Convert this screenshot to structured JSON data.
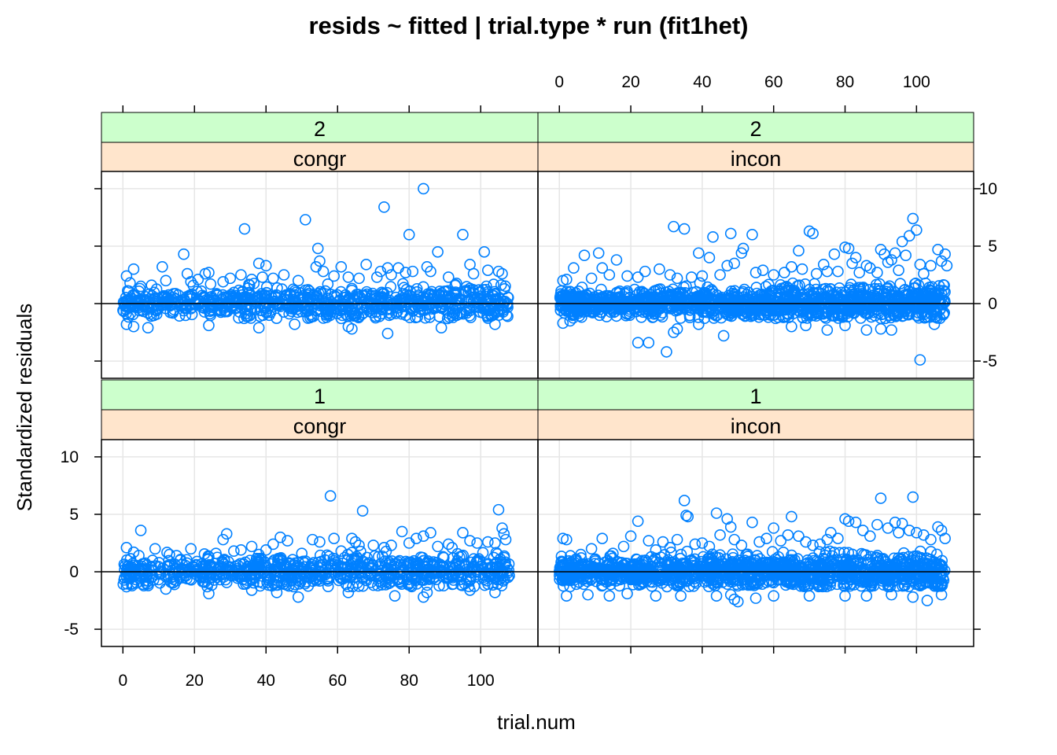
{
  "chart_data": {
    "type": "scatter",
    "title": "resids ~ fitted | trial.type * run (fit1het)",
    "xlabel": "trial.num",
    "ylabel": "Standardized residuals",
    "xlim": [
      -6,
      116
    ],
    "ylim": [
      -6.5,
      11.5
    ],
    "x_ticks": [
      0,
      20,
      40,
      60,
      80,
      100
    ],
    "y_ticks": [
      -5,
      0,
      5,
      10
    ],
    "grid": true,
    "reference_line_y": 0,
    "point_color": "#0080FF",
    "strip_colors": {
      "run": "#CCFFCC",
      "trial_type": "#FFE5CC"
    },
    "panels": [
      {
        "row": "top",
        "col": "left",
        "run": "2",
        "trial_type": "congr",
        "outliers": [
          [
            1,
            2.4
          ],
          [
            2,
            1.8
          ],
          [
            3,
            3
          ],
          [
            5,
            1.5
          ],
          [
            8,
            1.6
          ],
          [
            11,
            3.2
          ],
          [
            12,
            2
          ],
          [
            17,
            4.3
          ],
          [
            18,
            2.6
          ],
          [
            19,
            1.9
          ],
          [
            21,
            2.1
          ],
          [
            23,
            2.6
          ],
          [
            24,
            2.7
          ],
          [
            28,
            1.9
          ],
          [
            30,
            2.2
          ],
          [
            33,
            2.5
          ],
          [
            34,
            6.5
          ],
          [
            36,
            2.1
          ],
          [
            38,
            3.5
          ],
          [
            39,
            2.3
          ],
          [
            40,
            3.3
          ],
          [
            42,
            2.2
          ],
          [
            45,
            2.5
          ],
          [
            49,
            2
          ],
          [
            51,
            7.3
          ],
          [
            54,
            3.2
          ],
          [
            54.5,
            4.8
          ],
          [
            55,
            3.7
          ],
          [
            56,
            2.8
          ],
          [
            59,
            2.4
          ],
          [
            61,
            3.2
          ],
          [
            63,
            2.3
          ],
          [
            66,
            2.2
          ],
          [
            68,
            3.4
          ],
          [
            71,
            2.3
          ],
          [
            72,
            2.8
          ],
          [
            73,
            8.4
          ],
          [
            74,
            3.1
          ],
          [
            75,
            2.5
          ],
          [
            77,
            3.1
          ],
          [
            79,
            2.7
          ],
          [
            80,
            6
          ],
          [
            81,
            2.8
          ],
          [
            84,
            10
          ],
          [
            85,
            3.2
          ],
          [
            86,
            2.8
          ],
          [
            88,
            4.5
          ],
          [
            91,
            2.3
          ],
          [
            95,
            6
          ],
          [
            97,
            3.4
          ],
          [
            98,
            2.6
          ],
          [
            101,
            4.5
          ],
          [
            102,
            2.9
          ],
          [
            105,
            2.8
          ],
          [
            106,
            2.6
          ]
        ],
        "low_outliers": [
          [
            1,
            -1.8
          ],
          [
            3,
            -2
          ],
          [
            7,
            -2.1
          ],
          [
            24,
            -1.9
          ],
          [
            38,
            -2.1
          ],
          [
            48,
            -1.8
          ],
          [
            63,
            -2
          ],
          [
            64,
            -2.2
          ],
          [
            74,
            -2.6
          ],
          [
            89,
            -2.1
          ],
          [
            104,
            -1.8
          ]
        ]
      },
      {
        "row": "top",
        "col": "right",
        "run": "2",
        "trial_type": "incon",
        "outliers": [
          [
            1,
            2
          ],
          [
            2,
            2.1
          ],
          [
            4,
            3.1
          ],
          [
            7,
            4.2
          ],
          [
            9,
            2.2
          ],
          [
            11,
            4.4
          ],
          [
            12,
            3.1
          ],
          [
            14,
            2.5
          ],
          [
            16,
            3.8
          ],
          [
            19,
            2.4
          ],
          [
            22,
            2.3
          ],
          [
            24,
            2.8
          ],
          [
            28,
            3
          ],
          [
            31,
            2.5
          ],
          [
            32,
            6.7
          ],
          [
            33,
            2.2
          ],
          [
            35,
            6.5
          ],
          [
            37,
            2.3
          ],
          [
            39,
            4.4
          ],
          [
            40,
            2.4
          ],
          [
            42,
            4
          ],
          [
            43,
            5.8
          ],
          [
            45,
            2.5
          ],
          [
            47,
            3.3
          ],
          [
            48,
            6.1
          ],
          [
            49,
            3.5
          ],
          [
            51,
            4.4
          ],
          [
            51.5,
            4.8
          ],
          [
            54,
            6
          ],
          [
            55,
            2.7
          ],
          [
            57,
            2.9
          ],
          [
            60,
            2.5
          ],
          [
            63,
            2.7
          ],
          [
            65,
            3.2
          ],
          [
            67,
            4.6
          ],
          [
            68,
            3
          ],
          [
            70,
            6.3
          ],
          [
            71,
            6.1
          ],
          [
            72,
            2.6
          ],
          [
            74,
            3.4
          ],
          [
            75,
            2.8
          ],
          [
            77,
            4.3
          ],
          [
            78,
            2.8
          ],
          [
            80,
            4.9
          ],
          [
            81,
            4.8
          ],
          [
            82,
            3.5
          ],
          [
            83,
            4
          ],
          [
            84,
            2.7
          ],
          [
            86,
            3.3
          ],
          [
            87,
            3.1
          ],
          [
            89,
            2.7
          ],
          [
            90,
            4.7
          ],
          [
            91,
            4.3
          ],
          [
            92,
            3.6
          ],
          [
            93,
            3.8
          ],
          [
            94,
            4.4
          ],
          [
            95,
            2.9
          ],
          [
            96,
            5.4
          ],
          [
            97,
            4.2
          ],
          [
            98,
            5.9
          ],
          [
            99,
            7.4
          ],
          [
            100,
            6.4
          ],
          [
            101,
            3.4
          ],
          [
            102,
            2.6
          ],
          [
            104,
            3.3
          ],
          [
            106,
            4.7
          ],
          [
            107,
            3.7
          ],
          [
            108,
            4.3
          ],
          [
            108.5,
            3.3
          ]
        ],
        "low_outliers": [
          [
            1,
            -1.7
          ],
          [
            3,
            -1.5
          ],
          [
            22,
            -3.4
          ],
          [
            25,
            -3.4
          ],
          [
            30,
            -4.2
          ],
          [
            32,
            -2.5
          ],
          [
            33,
            -2.2
          ],
          [
            39,
            -1.8
          ],
          [
            46,
            -2.8
          ],
          [
            65,
            -2
          ],
          [
            69,
            -1.9
          ],
          [
            75,
            -2.3
          ],
          [
            80,
            -1.9
          ],
          [
            86,
            -2.3
          ],
          [
            90,
            -2.2
          ],
          [
            93,
            -2.3
          ],
          [
            101,
            -4.9
          ],
          [
            105,
            -1.8
          ]
        ]
      },
      {
        "row": "bottom",
        "col": "left",
        "run": "1",
        "trial_type": "congr",
        "outliers": [
          [
            1,
            2.1
          ],
          [
            3,
            1.7
          ],
          [
            5,
            3.6
          ],
          [
            9,
            2
          ],
          [
            13,
            1.5
          ],
          [
            15,
            1.4
          ],
          [
            19,
            2
          ],
          [
            24,
            1.3
          ],
          [
            26,
            1.6
          ],
          [
            28,
            2.8
          ],
          [
            29,
            3.3
          ],
          [
            31,
            1.8
          ],
          [
            33,
            1.9
          ],
          [
            36,
            2.2
          ],
          [
            38,
            1.5
          ],
          [
            40,
            1.9
          ],
          [
            42,
            2.4
          ],
          [
            44,
            3
          ],
          [
            46,
            2.7
          ],
          [
            50,
            1.6
          ],
          [
            53,
            2.8
          ],
          [
            55,
            2.6
          ],
          [
            58,
            6.6
          ],
          [
            59,
            2.9
          ],
          [
            61,
            1.8
          ],
          [
            64,
            2.9
          ],
          [
            65,
            2.6
          ],
          [
            66,
            2.3
          ],
          [
            67,
            5.3
          ],
          [
            70,
            2.3
          ],
          [
            73,
            2.1
          ],
          [
            75,
            2.3
          ],
          [
            78,
            3.5
          ],
          [
            80,
            2.5
          ],
          [
            82,
            2.9
          ],
          [
            84,
            3.1
          ],
          [
            86,
            3.4
          ],
          [
            88,
            2.2
          ],
          [
            91,
            2.4
          ],
          [
            92,
            2.1
          ],
          [
            95,
            3.4
          ],
          [
            97,
            2.7
          ],
          [
            99,
            2.5
          ],
          [
            102,
            2.6
          ],
          [
            104,
            2.5
          ],
          [
            105,
            5.4
          ],
          [
            106,
            3.8
          ],
          [
            106.5,
            3.3
          ],
          [
            107,
            2.8
          ]
        ],
        "low_outliers": [
          [
            1,
            -1.3
          ],
          [
            12,
            -1.5
          ],
          [
            24,
            -1.9
          ],
          [
            36,
            -1.6
          ],
          [
            43,
            -1.8
          ],
          [
            49,
            -2.2
          ],
          [
            63,
            -1.8
          ],
          [
            76,
            -2.1
          ],
          [
            84,
            -2.2
          ],
          [
            85,
            -1.8
          ],
          [
            97,
            -1.6
          ],
          [
            104,
            -1.8
          ]
        ]
      },
      {
        "row": "bottom",
        "col": "right",
        "run": "1",
        "trial_type": "incon",
        "outliers": [
          [
            1,
            2.9
          ],
          [
            2,
            2.8
          ],
          [
            6,
            1.5
          ],
          [
            9,
            2
          ],
          [
            12,
            2.9
          ],
          [
            15,
            1.6
          ],
          [
            18,
            2.2
          ],
          [
            20,
            3.1
          ],
          [
            22,
            4.4
          ],
          [
            25,
            2.7
          ],
          [
            27,
            1.9
          ],
          [
            29,
            2.6
          ],
          [
            31,
            2.1
          ],
          [
            33,
            2.8
          ],
          [
            35,
            6.2
          ],
          [
            35.5,
            4.9
          ],
          [
            36,
            4.8
          ],
          [
            38,
            2.4
          ],
          [
            40,
            2.5
          ],
          [
            42,
            2.2
          ],
          [
            44,
            5.1
          ],
          [
            45,
            3.2
          ],
          [
            47,
            4.6
          ],
          [
            48,
            3.9
          ],
          [
            49,
            2.8
          ],
          [
            51,
            2.3
          ],
          [
            54,
            4.3
          ],
          [
            56,
            2.6
          ],
          [
            58,
            2.9
          ],
          [
            60,
            3.8
          ],
          [
            62,
            2.7
          ],
          [
            64,
            3.2
          ],
          [
            65,
            4.8
          ],
          [
            67,
            3.1
          ],
          [
            69,
            2.6
          ],
          [
            71,
            2.3
          ],
          [
            73,
            2.4
          ],
          [
            75,
            2.8
          ],
          [
            76,
            3.4
          ],
          [
            78,
            2.9
          ],
          [
            80,
            4.6
          ],
          [
            81,
            4.4
          ],
          [
            83,
            4.3
          ],
          [
            85,
            3.6
          ],
          [
            87,
            3.1
          ],
          [
            89,
            4.1
          ],
          [
            90,
            6.4
          ],
          [
            92,
            3.8
          ],
          [
            94,
            4.3
          ],
          [
            95,
            3.4
          ],
          [
            96,
            4.2
          ],
          [
            98,
            3.6
          ],
          [
            99,
            6.5
          ],
          [
            100,
            3.4
          ],
          [
            102,
            3.2
          ],
          [
            104,
            2.8
          ],
          [
            106,
            3.9
          ],
          [
            107,
            3.6
          ],
          [
            108,
            2.9
          ]
        ],
        "low_outliers": [
          [
            2,
            -2.1
          ],
          [
            8,
            -2
          ],
          [
            14,
            -2.1
          ],
          [
            19,
            -1.9
          ],
          [
            27,
            -2.1
          ],
          [
            34,
            -2.1
          ],
          [
            44,
            -2.1
          ],
          [
            48,
            -2
          ],
          [
            49,
            -2.4
          ],
          [
            50,
            -2.6
          ],
          [
            55,
            -2.3
          ],
          [
            60,
            -2.1
          ],
          [
            70,
            -2.1
          ],
          [
            80,
            -2.1
          ],
          [
            86,
            -2.1
          ],
          [
            93,
            -2
          ],
          [
            99,
            -2.2
          ],
          [
            103,
            -2.5
          ],
          [
            107,
            -2
          ]
        ]
      }
    ]
  }
}
